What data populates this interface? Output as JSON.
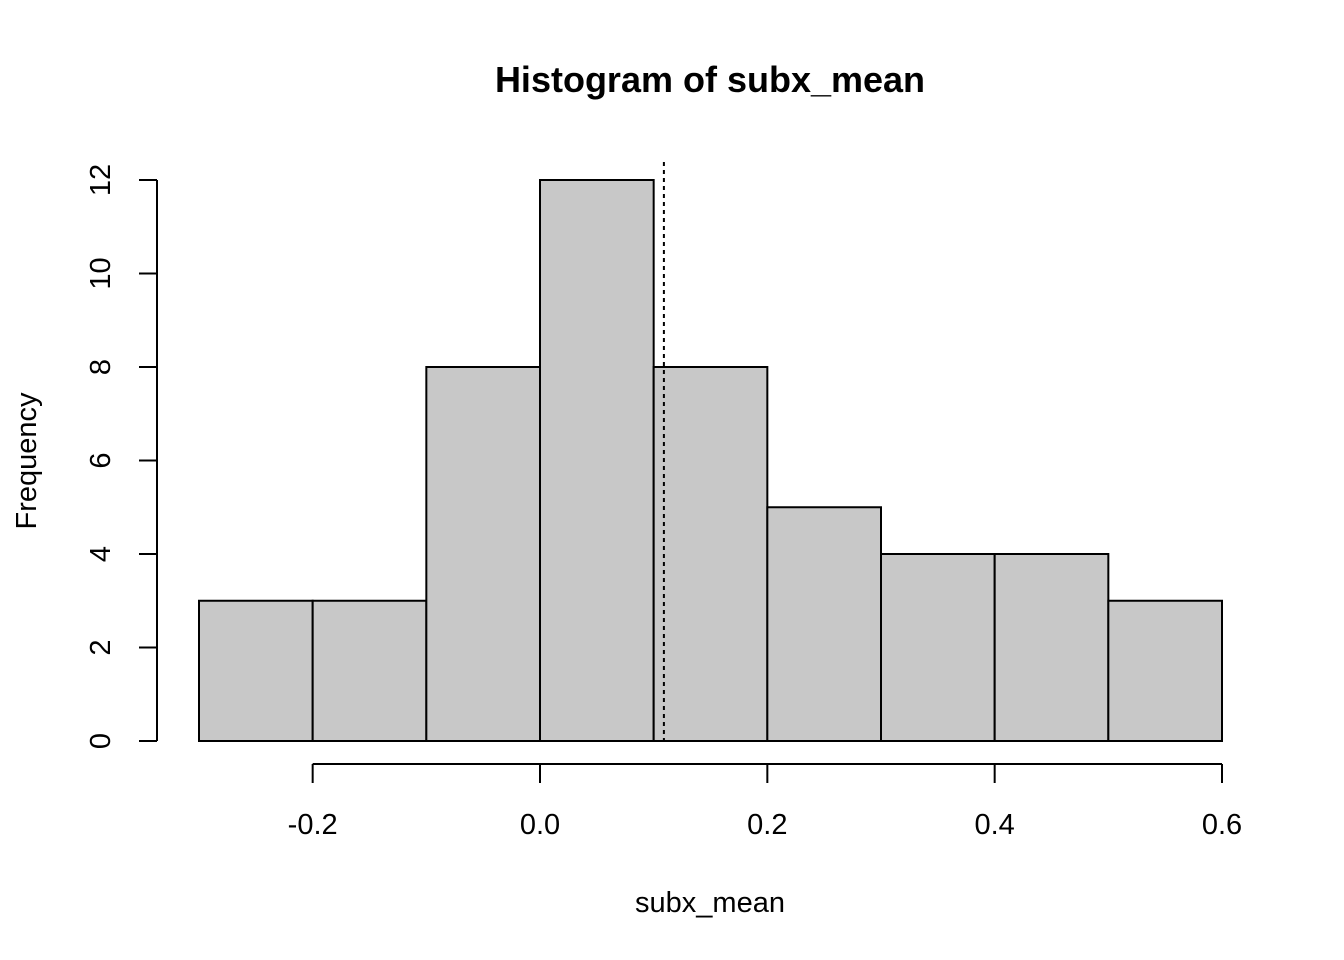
{
  "chart_data": {
    "type": "bar",
    "title": "Histogram of subx_mean",
    "xlabel": "subx_mean",
    "ylabel": "Frequency",
    "bins": [
      {
        "from": -0.3,
        "to": -0.2,
        "count": 3
      },
      {
        "from": -0.2,
        "to": -0.1,
        "count": 3
      },
      {
        "from": -0.1,
        "to": 0.0,
        "count": 8
      },
      {
        "from": 0.0,
        "to": 0.1,
        "count": 12
      },
      {
        "from": 0.1,
        "to": 0.2,
        "count": 8
      },
      {
        "from": 0.2,
        "to": 0.3,
        "count": 5
      },
      {
        "from": 0.3,
        "to": 0.4,
        "count": 4
      },
      {
        "from": 0.4,
        "to": 0.5,
        "count": 4
      },
      {
        "from": 0.5,
        "to": 0.6,
        "count": 3
      }
    ],
    "x_ticks": [
      -0.2,
      0.0,
      0.2,
      0.4,
      0.6
    ],
    "x_tick_labels": [
      "-0.2",
      "0.0",
      "0.2",
      "0.4",
      "0.6"
    ],
    "y_ticks": [
      0,
      2,
      4,
      6,
      8,
      10,
      12
    ],
    "y_tick_labels": [
      "0",
      "2",
      "4",
      "6",
      "8",
      "10",
      "12"
    ],
    "xlim": [
      -0.3,
      0.6
    ],
    "ylim": [
      0,
      12
    ],
    "vertical_line": {
      "x": 0.109,
      "style": "dotted"
    },
    "grid": false,
    "bar_fill": "#c8c8c8",
    "bar_stroke": "#000000"
  }
}
